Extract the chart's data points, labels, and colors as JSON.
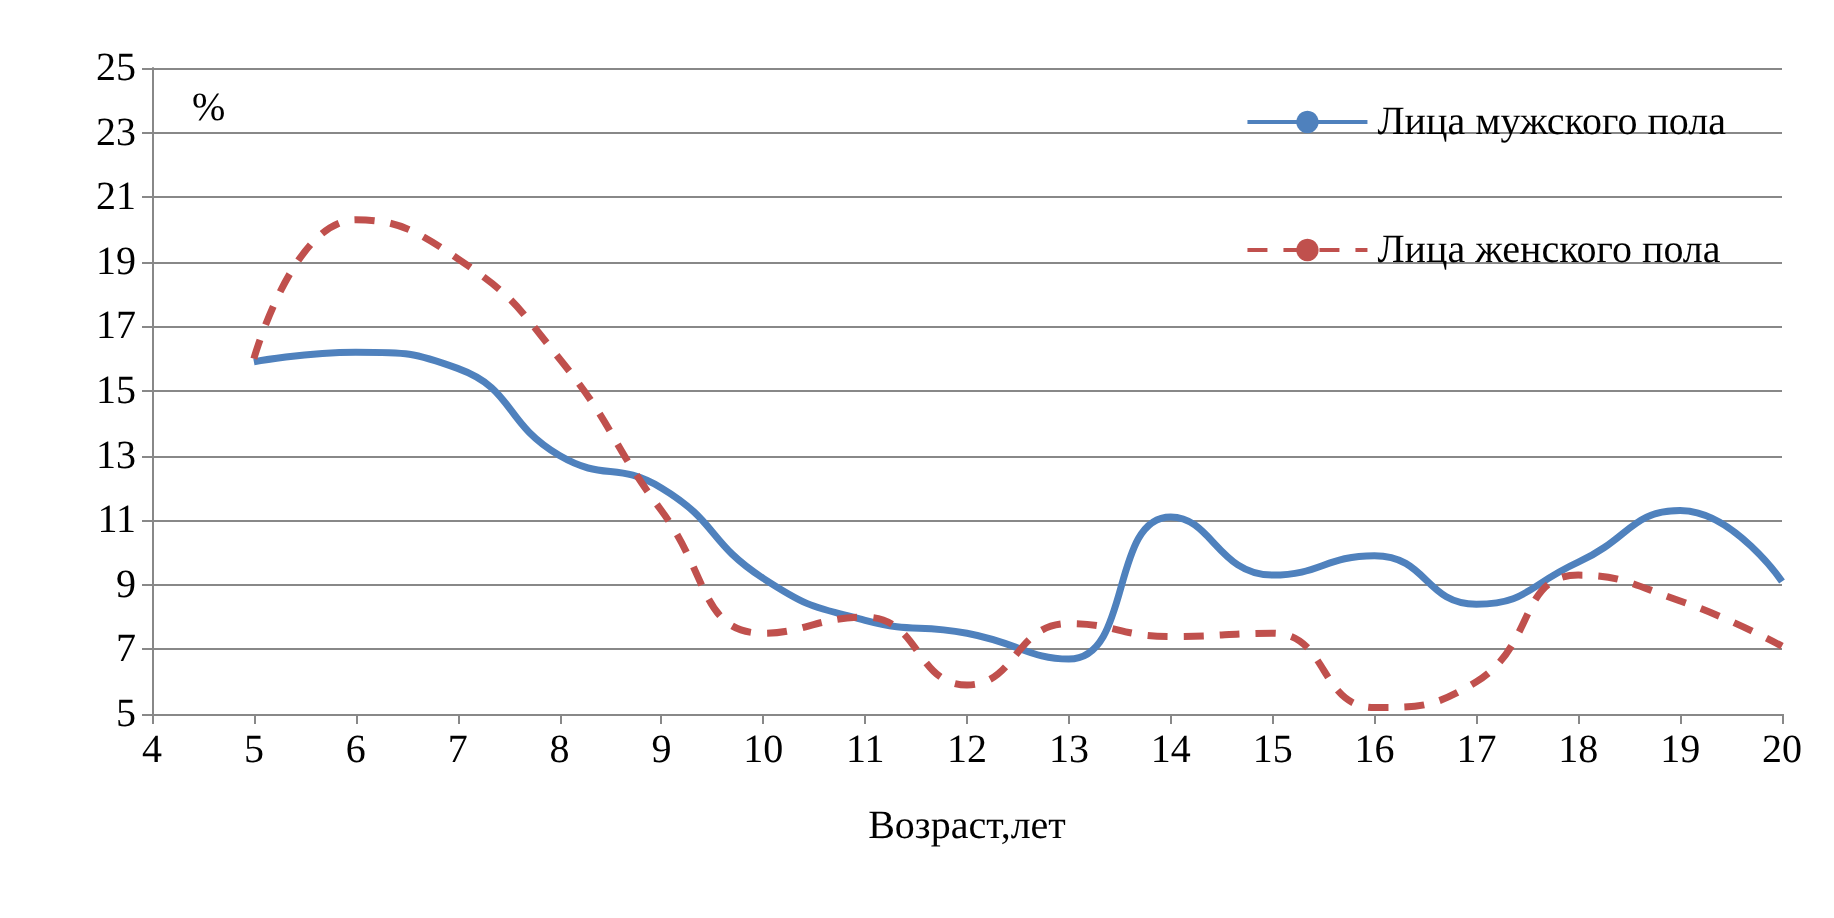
{
  "chart_data": {
    "type": "line",
    "xlabel": "Возраст,лет",
    "ylabel": "%",
    "x": [
      5,
      6,
      7,
      8,
      9,
      10,
      11,
      12,
      13,
      14,
      15,
      16,
      17,
      18,
      19,
      20
    ],
    "series": [
      {
        "name": "Лица мужского пола",
        "color": "#4f81bd",
        "line_style": "solid",
        "values": [
          15.9,
          16.2,
          15.7,
          13.0,
          12.0,
          9.2,
          7.9,
          7.5,
          6.7,
          11.1,
          9.3,
          9.9,
          8.4,
          9.7,
          11.3,
          9.1
        ]
      },
      {
        "name": "Лица женского пола",
        "color": "#c0504d",
        "line_style": "dashed",
        "values": [
          16.0,
          20.3,
          19.1,
          16.0,
          11.3,
          7.5,
          8.0,
          5.9,
          7.8,
          7.4,
          7.5,
          5.2,
          6.0,
          9.3,
          8.5,
          7.1
        ]
      }
    ],
    "xlim": [
      4,
      20
    ],
    "xticks": [
      4,
      5,
      6,
      7,
      8,
      9,
      10,
      11,
      12,
      13,
      14,
      15,
      16,
      17,
      18,
      19,
      20
    ],
    "ylim": [
      5,
      25
    ],
    "yticks": [
      5,
      7,
      9,
      11,
      13,
      15,
      17,
      19,
      21,
      23,
      25
    ],
    "grid": "y",
    "legend": "top right",
    "marker": "none"
  }
}
